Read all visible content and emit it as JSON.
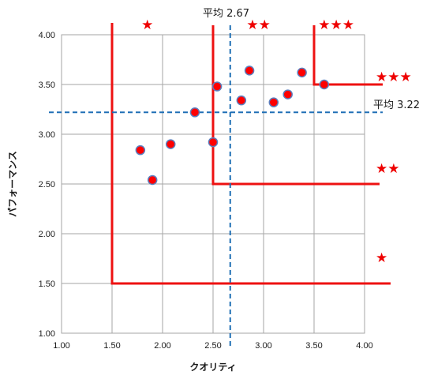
{
  "chart_data": {
    "type": "scatter",
    "xlabel": "クオリティ",
    "ylabel": "パフォーマンス",
    "xlim": [
      1.0,
      4.0
    ],
    "ylim": [
      1.0,
      4.0
    ],
    "x_ticks": [
      "1.00",
      "1.50",
      "2.00",
      "2.50",
      "3.00",
      "3.50",
      "4.00"
    ],
    "y_ticks": [
      "1.00",
      "1.50",
      "2.00",
      "2.50",
      "3.00",
      "3.50",
      "4.00"
    ],
    "grid": true,
    "points": [
      {
        "x": 1.78,
        "y": 2.84
      },
      {
        "x": 1.9,
        "y": 2.54
      },
      {
        "x": 2.08,
        "y": 2.9
      },
      {
        "x": 2.32,
        "y": 3.22
      },
      {
        "x": 2.5,
        "y": 2.92
      },
      {
        "x": 2.54,
        "y": 3.48
      },
      {
        "x": 2.78,
        "y": 3.34
      },
      {
        "x": 2.86,
        "y": 3.64
      },
      {
        "x": 3.1,
        "y": 3.32
      },
      {
        "x": 3.24,
        "y": 3.4
      },
      {
        "x": 3.38,
        "y": 3.62
      },
      {
        "x": 3.6,
        "y": 3.5
      }
    ],
    "averages": {
      "x": {
        "value": 2.67,
        "label": "平均 2.67"
      },
      "y": {
        "value": 3.22,
        "label": "平均 3.22"
      }
    },
    "rank_boundaries": [
      {
        "rank": "★",
        "x": 1.5,
        "y": 1.5
      },
      {
        "rank": "★★",
        "x": 2.5,
        "y": 2.5
      },
      {
        "rank": "★★★",
        "x": 3.5,
        "y": 3.5
      }
    ],
    "star_labels": [
      {
        "text": "★",
        "region": "top",
        "near_x": 1.85
      },
      {
        "text": "★★",
        "region": "top",
        "near_x": 2.95
      },
      {
        "text": "★★★",
        "region": "top",
        "near_x": 3.72
      },
      {
        "text": "★★★",
        "region": "right",
        "near_y": 3.58
      },
      {
        "text": "★★",
        "region": "right",
        "near_y": 2.66
      },
      {
        "text": "★",
        "region": "right",
        "near_y": 1.76
      }
    ],
    "colors": {
      "marker_fill": "#ff0000",
      "marker_edge": "#5b7fbf",
      "boundary_line": "#ee1111",
      "average_line": "#1f6fb5",
      "grid": "#a6a6a6",
      "stars": "#ee0000"
    }
  }
}
